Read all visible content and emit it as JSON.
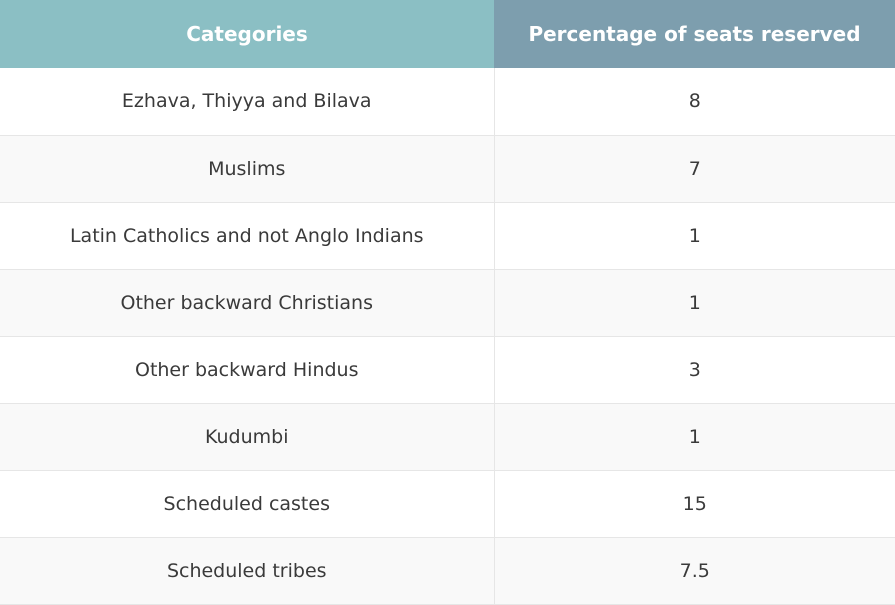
{
  "table": {
    "headers": {
      "category": "Categories",
      "percentage": "Percentage of seats reserved"
    },
    "rows": [
      {
        "category": "Ezhava, Thiyya and Bilava",
        "percentage": "8"
      },
      {
        "category": "Muslims",
        "percentage": "7"
      },
      {
        "category": "Latin Catholics and not Anglo Indians",
        "percentage": "1"
      },
      {
        "category": "Other backward Christians",
        "percentage": "1"
      },
      {
        "category": "Other backward Hindus",
        "percentage": "3"
      },
      {
        "category": "Kudumbi",
        "percentage": "1"
      },
      {
        "category": "Scheduled castes",
        "percentage": "15"
      },
      {
        "category": "Scheduled tribes",
        "percentage": "7.5"
      }
    ]
  },
  "colors": {
    "header_category_bg": "#8bbfc4",
    "header_percentage_bg": "#7d9eae",
    "row_alt_bg": "#f9f9f9",
    "text": "#3a3a3a"
  }
}
